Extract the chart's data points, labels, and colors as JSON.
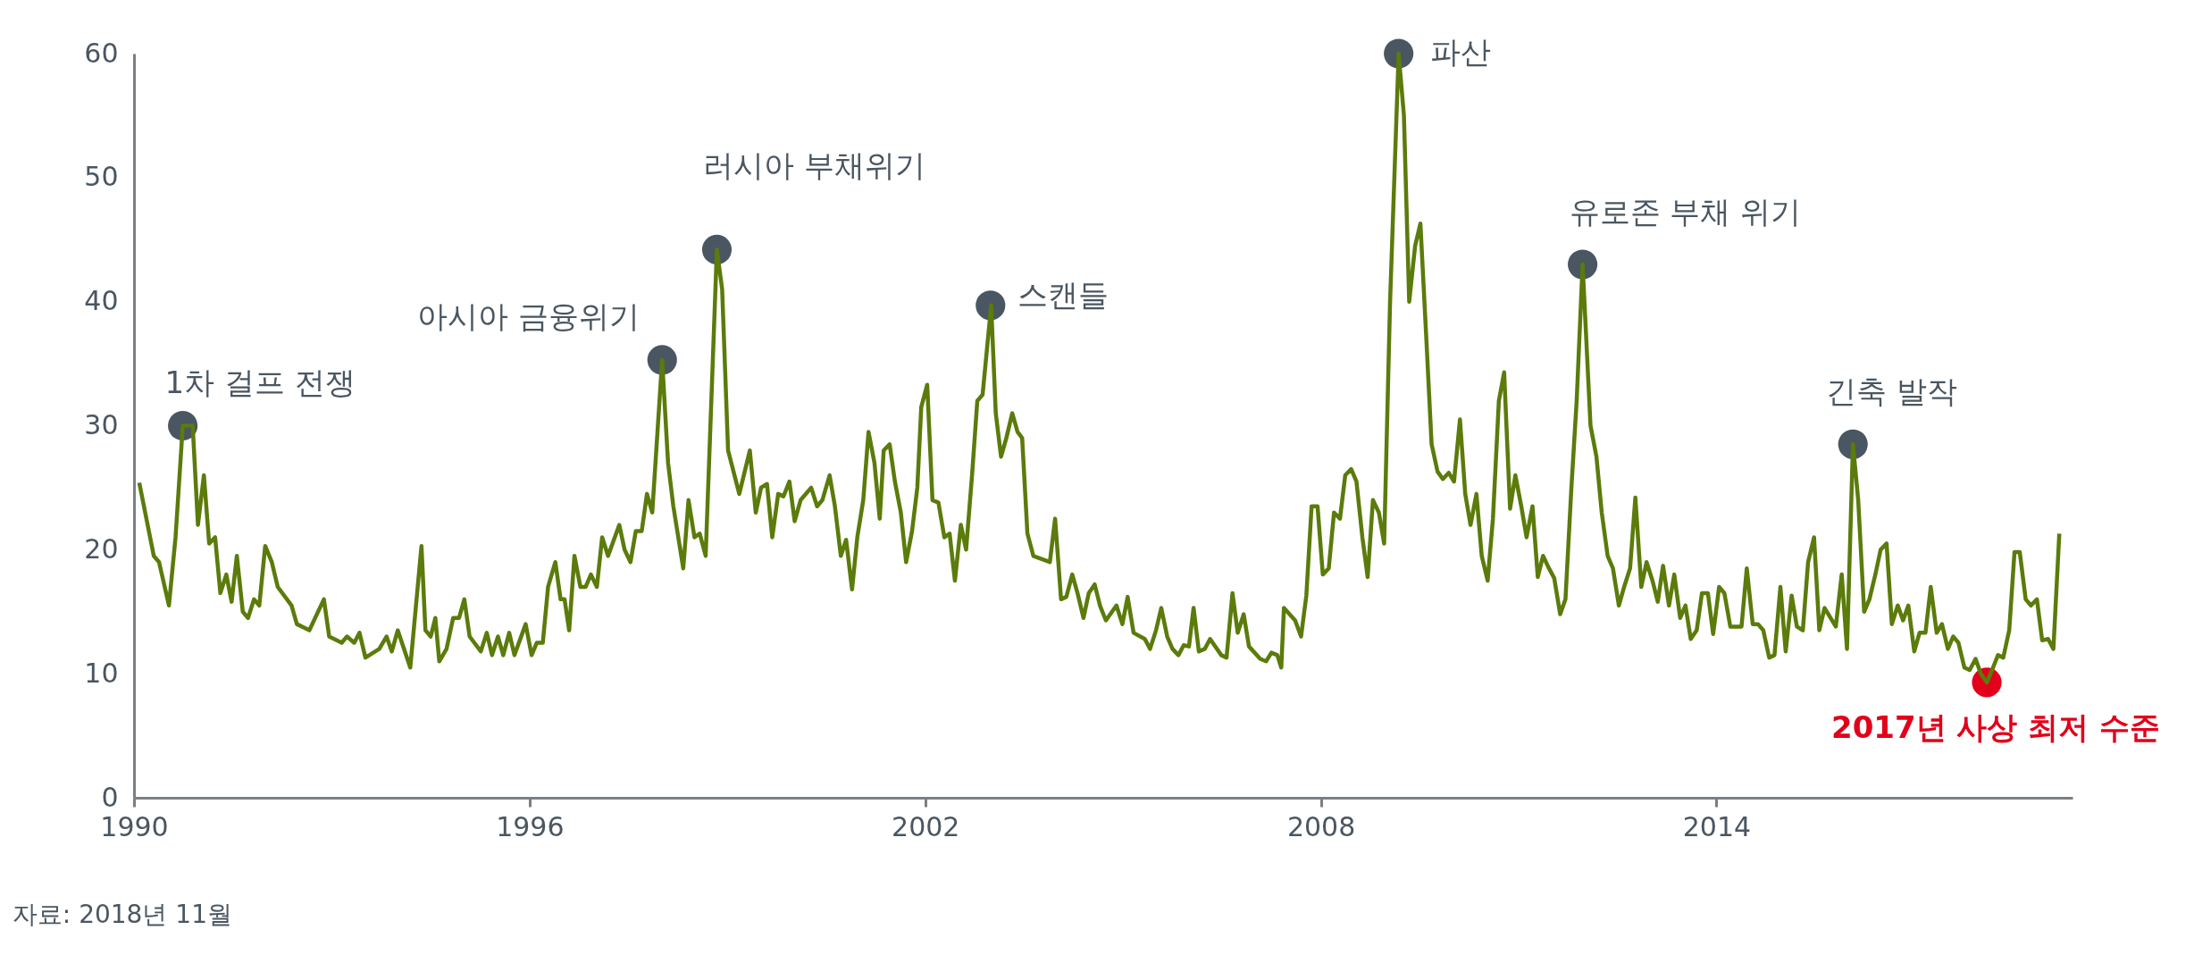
{
  "chart_data": {
    "type": "line",
    "xlim": [
      1990,
      2019.4
    ],
    "xticks": [
      1990,
      1996,
      2002,
      2008,
      2014
    ],
    "ylim": [
      0,
      60
    ],
    "yticks": [
      0,
      10,
      20,
      30,
      40,
      50,
      60
    ],
    "series": [
      {
        "color": "#5b7b0b",
        "x": [
          1990.08,
          1990.3,
          1990.38,
          1990.53,
          1990.63,
          1990.74,
          1990.89,
          1990.97,
          1991.06,
          1991.14,
          1991.23,
          1991.31,
          1991.4,
          1991.48,
          1991.56,
          1991.65,
          1991.73,
          1991.82,
          1991.9,
          1991.99,
          1992.09,
          1992.18,
          1992.39,
          1992.47,
          1992.66,
          1992.88,
          1992.96,
          1993.15,
          1993.23,
          1993.34,
          1993.42,
          1993.51,
          1993.72,
          1993.83,
          1993.91,
          1994.0,
          1994.19,
          1994.36,
          1994.42,
          1994.5,
          1994.57,
          1994.63,
          1994.74,
          1994.84,
          1994.93,
          1995.01,
          1995.09,
          1995.26,
          1995.35,
          1995.43,
          1995.52,
          1995.6,
          1995.69,
          1995.77,
          1995.94,
          1996.03,
          1996.11,
          1996.2,
          1996.28,
          1996.39,
          1996.47,
          1996.53,
          1996.6,
          1996.68,
          1996.77,
          1996.85,
          1996.93,
          1997.02,
          1997.1,
          1997.19,
          1997.36,
          1997.44,
          1997.53,
          1997.61,
          1997.7,
          1997.78,
          1997.86,
          1998.01,
          1998.1,
          1998.18,
          1998.33,
          1998.41,
          1998.5,
          1998.58,
          1998.67,
          1998.84,
          1998.92,
          1999.01,
          1999.18,
          1999.34,
          1999.43,
          1999.51,
          1999.6,
          1999.68,
          1999.77,
          1999.85,
          1999.94,
          2000.02,
          2000.11,
          2000.27,
          2000.36,
          2000.44,
          2000.55,
          2000.63,
          2000.72,
          2000.8,
          2000.89,
          2000.97,
          2001.06,
          2001.14,
          2001.23,
          2001.31,
          2001.37,
          2001.46,
          2001.54,
          2001.63,
          2001.71,
          2001.8,
          2001.88,
          2001.94,
          2002.03,
          2002.11,
          2002.2,
          2002.29,
          2002.37,
          2002.45,
          2002.54,
          2002.62,
          2002.71,
          2002.79,
          2002.87,
          2003.0,
          2003.07,
          2003.15,
          2003.23,
          2003.32,
          2003.4,
          2003.47,
          2003.55,
          2003.64,
          2003.89,
          2003.97,
          2004.06,
          2004.14,
          2004.23,
          2004.31,
          2004.4,
          2004.48,
          2004.57,
          2004.65,
          2004.74,
          2004.9,
          2004.99,
          2005.07,
          2005.16,
          2005.33,
          2005.41,
          2005.5,
          2005.58,
          2005.67,
          2005.75,
          2005.84,
          2005.92,
          2006.0,
          2006.07,
          2006.15,
          2006.24,
          2006.32,
          2006.49,
          2006.57,
          2006.66,
          2006.74,
          2006.83,
          2006.91,
          2007.08,
          2007.17,
          2007.25,
          2007.34,
          2007.4,
          2007.44,
          2007.61,
          2007.7,
          2007.78,
          2007.86,
          2007.95,
          2008.03,
          2008.12,
          2008.2,
          2008.29,
          2008.37,
          2008.46,
          2008.54,
          2008.63,
          2008.71,
          2008.79,
          2008.88,
          2008.96,
          2009.05,
          2009.18,
          2009.26,
          2009.34,
          2009.43,
          2009.51,
          2009.6,
          2009.68,
          2009.77,
          2009.85,
          2009.94,
          2010.02,
          2010.11,
          2010.19,
          2010.27,
          2010.36,
          2010.44,
          2010.53,
          2010.61,
          2010.7,
          2010.78,
          2010.87,
          2010.95,
          2011.04,
          2011.12,
          2011.21,
          2011.29,
          2011.37,
          2011.46,
          2011.54,
          2011.63,
          2011.71,
          2011.8,
          2011.88,
          2011.97,
          2012.09,
          2012.18,
          2012.26,
          2012.35,
          2012.43,
          2012.52,
          2012.6,
          2012.69,
          2012.77,
          2012.86,
          2012.94,
          2013.03,
          2013.11,
          2013.19,
          2013.28,
          2013.36,
          2013.45,
          2013.53,
          2013.61,
          2013.7,
          2013.78,
          2013.87,
          2013.95,
          2014.04,
          2014.12,
          2014.21,
          2014.38,
          2014.46,
          2014.55,
          2014.63,
          2014.71,
          2014.8,
          2014.88,
          2014.97,
          2015.05,
          2015.14,
          2015.22,
          2015.31,
          2015.39,
          2015.48,
          2015.56,
          2015.64,
          2015.81,
          2015.9,
          2015.98,
          2016.07,
          2016.15,
          2016.24,
          2016.32,
          2016.41,
          2016.49,
          2016.58,
          2016.66,
          2016.75,
          2016.83,
          2016.91,
          2017.0,
          2017.08,
          2017.17,
          2017.25,
          2017.34,
          2017.42,
          2017.51,
          2017.59,
          2017.67,
          2017.76,
          2017.84,
          2017.93,
          2018.01,
          2018.1,
          2018.18,
          2018.27,
          2018.35,
          2018.44,
          2018.52,
          2018.6,
          2018.69,
          2018.77,
          2018.86,
          2018.94,
          2019.03,
          2019.11,
          2019.2
        ],
        "values": [
          25.4,
          19.5,
          19,
          15.5,
          21,
          30,
          30,
          22,
          26,
          20.5,
          21,
          16.5,
          18,
          15.8,
          19.5,
          15,
          14.5,
          16,
          15.5,
          20.3,
          19,
          17,
          15.5,
          14,
          13.5,
          16,
          13,
          12.5,
          13,
          12.5,
          13.3,
          11.3,
          12,
          13,
          11.8,
          13.5,
          10.5,
          20.3,
          13.5,
          13,
          14.5,
          11,
          12,
          14.5,
          14.5,
          16,
          13,
          11.8,
          13.3,
          11.5,
          13,
          11.5,
          13.3,
          11.5,
          14,
          11.5,
          12.5,
          12.5,
          17,
          19,
          16,
          16,
          13.5,
          19.5,
          17,
          17,
          18,
          17,
          21,
          19.5,
          22,
          20,
          19,
          21.5,
          21.5,
          24.5,
          23,
          35.3,
          27,
          23.5,
          18.5,
          24,
          21,
          21.3,
          19.5,
          44.2,
          41,
          28,
          24.5,
          28,
          23,
          25,
          25.3,
          21,
          24.5,
          24.3,
          25.5,
          22.3,
          24,
          25,
          23.5,
          24,
          26,
          23.5,
          19.5,
          20.8,
          16.8,
          21,
          24,
          29.5,
          27,
          22.5,
          28,
          28.5,
          25.5,
          23,
          19,
          21.5,
          25,
          31.5,
          33.3,
          24,
          23.8,
          21,
          21.3,
          17.5,
          22,
          20,
          26,
          32,
          32.5,
          39.7,
          31,
          27.5,
          29,
          31,
          29.5,
          29,
          21.3,
          19.5,
          19,
          22.5,
          16,
          16.2,
          18,
          16.5,
          14.5,
          16.5,
          17.2,
          15.5,
          14.3,
          15.5,
          14,
          16.2,
          13.3,
          12.8,
          12,
          13.5,
          15.3,
          13,
          12,
          11.5,
          12.3,
          12.2,
          15.3,
          11.8,
          12,
          12.8,
          11.5,
          11.3,
          16.5,
          13.3,
          14.8,
          12.2,
          11.2,
          11,
          11.7,
          11.5,
          10.5,
          15.3,
          14.3,
          13,
          16.3,
          23.5,
          23.5,
          18,
          18.5,
          23,
          22.5,
          26,
          26.5,
          25.5,
          21,
          17.8,
          24,
          23,
          20.5,
          40,
          60,
          55,
          40,
          44.5,
          46.3,
          37,
          28.5,
          26.3,
          25.7,
          26.2,
          25.5,
          30.5,
          24.5,
          22,
          24.5,
          19.5,
          17.5,
          22.5,
          32,
          34.3,
          23.3,
          26,
          23.5,
          21,
          23.5,
          17.8,
          19.5,
          18.5,
          17.7,
          14.8,
          16,
          25,
          32,
          43,
          30,
          27.5,
          23,
          19.5,
          18.5,
          15.5,
          17,
          18.5,
          24.2,
          17,
          19,
          17.5,
          15.8,
          18.7,
          15.5,
          18,
          14.5,
          15.5,
          12.8,
          13.5,
          16.5,
          16.5,
          13.2,
          17,
          16.5,
          13.8,
          13.8,
          18.5,
          14,
          14,
          13.5,
          11.3,
          11.5,
          17,
          11.8,
          16.3,
          13.8,
          13.5,
          19,
          21,
          13.5,
          15.3,
          13.8,
          18,
          12,
          28.5,
          24,
          15,
          16,
          18,
          20,
          20.5,
          14,
          15.5,
          14.3,
          15.5,
          11.8,
          13.3,
          13.3,
          17,
          13.3,
          14,
          12,
          13,
          12.5,
          10.5,
          10.3,
          11.2,
          10,
          9.3,
          10.3,
          11.5,
          11.3,
          13.5,
          19.8,
          19.8,
          16,
          15.5,
          16,
          12.7,
          12.8,
          12,
          21.3
        ]
      },
      {
        "type": "scatter",
        "color": "#4a5661",
        "x": [
          1990.74,
          1998.01,
          1998.84,
          2002.99,
          2009.18,
          2011.97,
          2016.07
        ],
        "values": [
          30,
          35.3,
          44.2,
          39.7,
          60,
          43,
          28.5
        ]
      },
      {
        "type": "scatter",
        "color": "#e2001a",
        "x": [
          2018.1
        ],
        "values": [
          9.3
        ]
      }
    ],
    "annotations": [
      {
        "text": "1차 걸프 전쟁",
        "x": 1990.74,
        "y": 30
      },
      {
        "text": "아시아 금융위기",
        "x": 1998.01,
        "y": 35.3
      },
      {
        "text": "러시아 부채위기",
        "x": 1998.84,
        "y": 44.2
      },
      {
        "text": "스캔들",
        "x": 2002.99,
        "y": 39.7
      },
      {
        "text": "파산",
        "x": 2009.18,
        "y": 60
      },
      {
        "text": "유로존 부채 위기",
        "x": 2011.97,
        "y": 43
      },
      {
        "text": "긴축 발작",
        "x": 2016.07,
        "y": 28.5
      },
      {
        "text": "2017년 사상 최저 수준",
        "x": 2018.1,
        "y": 9.3
      },
      "자료: 2018년 11월"
    ]
  }
}
